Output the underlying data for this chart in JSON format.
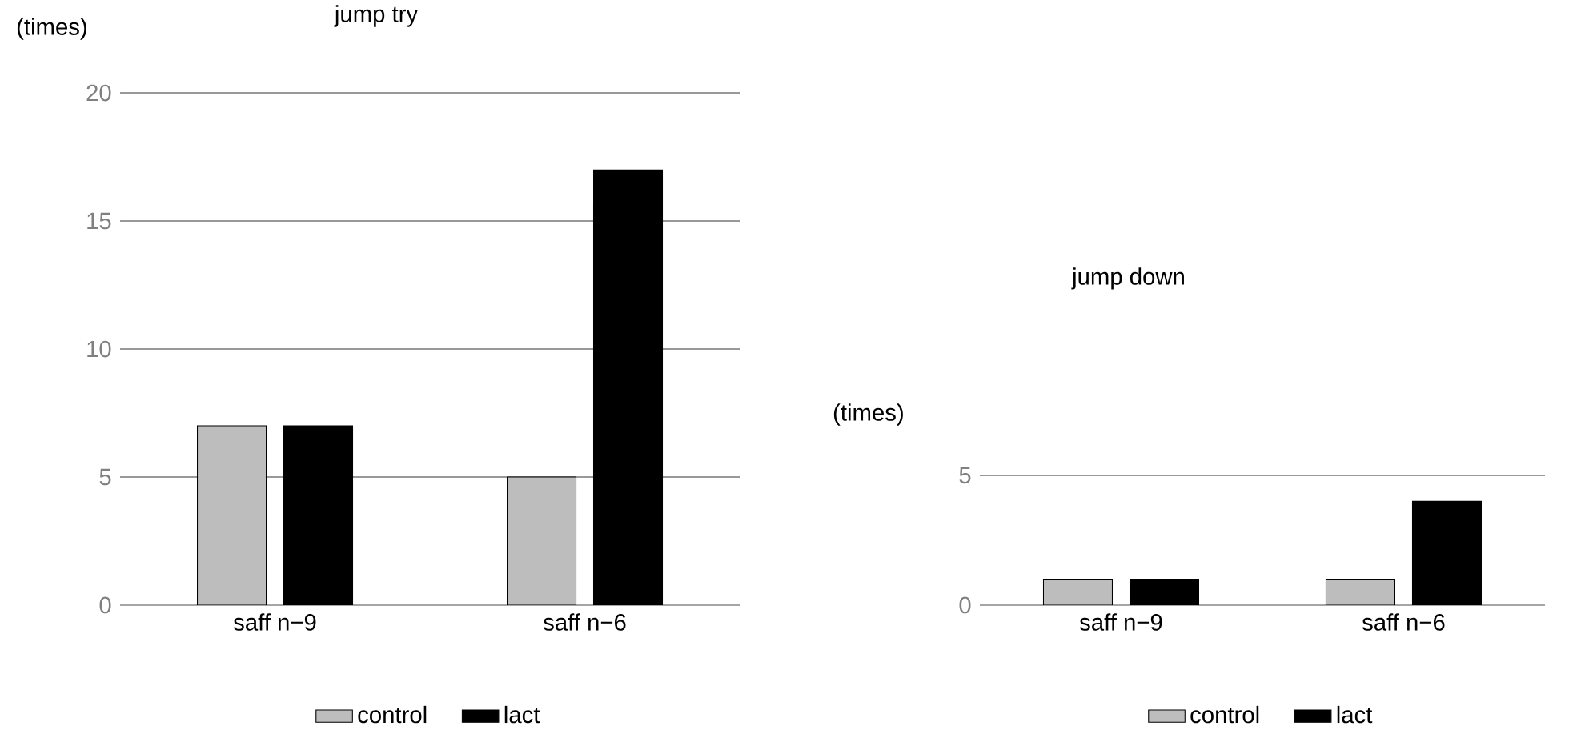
{
  "chart_data": [
    {
      "type": "bar",
      "title": "jump try",
      "ylabel": "(times)",
      "categories": [
        "saff n−9",
        "saff n−6"
      ],
      "series": [
        {
          "name": "control",
          "color": "#bdbdbd",
          "values": [
            7,
            5
          ]
        },
        {
          "name": "lact",
          "color": "#000000",
          "values": [
            7,
            17
          ]
        }
      ],
      "ylim": [
        0,
        20
      ],
      "yticks": [
        0,
        5,
        10,
        15,
        20
      ],
      "grid": "y",
      "legend": "bottom"
    },
    {
      "type": "bar",
      "title": "jump down",
      "ylabel": "(times)",
      "categories": [
        "saff n−9",
        "saff n−6"
      ],
      "series": [
        {
          "name": "control",
          "color": "#bdbdbd",
          "values": [
            1,
            1
          ]
        },
        {
          "name": "lact",
          "color": "#000000",
          "values": [
            1,
            4
          ]
        }
      ],
      "ylim": [
        0,
        5
      ],
      "yticks": [
        0,
        5
      ],
      "grid": "y",
      "legend": "bottom"
    }
  ]
}
